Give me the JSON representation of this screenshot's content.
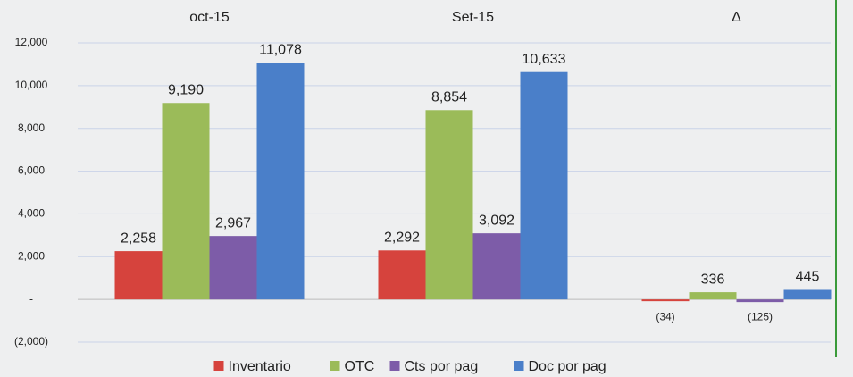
{
  "chart_data": {
    "type": "bar",
    "categories": [
      "oct-15",
      "Set-15",
      "Δ"
    ],
    "series": [
      {
        "name": "Inventario",
        "color": "#d6433d",
        "values": [
          2258,
          2292,
          -34
        ],
        "value_labels": [
          "2,258",
          "2,292",
          "(34)"
        ]
      },
      {
        "name": "OTC",
        "color": "#9bbb59",
        "values": [
          9190,
          8854,
          336
        ],
        "value_labels": [
          "9,190",
          "8,854",
          "336"
        ]
      },
      {
        "name": "Cts por pag",
        "color": "#7d5ca8",
        "values": [
          2967,
          3092,
          -125
        ],
        "value_labels": [
          "2,967",
          "3,092",
          "(125)"
        ]
      },
      {
        "name": "Doc por pag",
        "color": "#4a7fc9",
        "values": [
          11078,
          10633,
          445
        ],
        "value_labels": [
          "11,078",
          "10,633",
          "445"
        ]
      }
    ],
    "ylim": [
      -2000,
      12000
    ],
    "yticks": [
      {
        "value": -2000,
        "label": "(2,000)"
      },
      {
        "value": 0,
        "label": "-"
      },
      {
        "value": 2000,
        "label": "2,000"
      },
      {
        "value": 4000,
        "label": "4,000"
      },
      {
        "value": 6000,
        "label": "6,000"
      },
      {
        "value": 8000,
        "label": "8,000"
      },
      {
        "value": 10000,
        "label": "10,000"
      },
      {
        "value": 12000,
        "label": "12,000"
      }
    ],
    "grid": true,
    "legend": "bottom"
  }
}
